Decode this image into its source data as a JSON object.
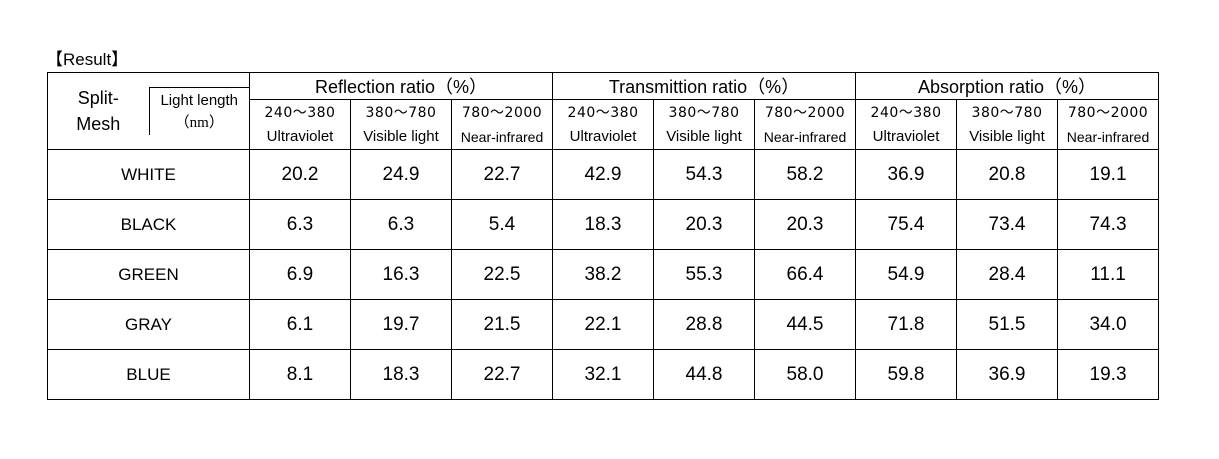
{
  "caption": "【Result】",
  "header": {
    "split_mesh": [
      "Split-",
      "Mesh"
    ],
    "light_length": [
      "Light length",
      "（nm）"
    ],
    "groups": [
      "Reflection ratio（%）",
      "Transmittion ratio（%）",
      "Absorption ratio（%）"
    ],
    "bands": [
      {
        "range": "240～380",
        "kind": "Ultraviolet"
      },
      {
        "range": "380～780",
        "kind": "Visible light"
      },
      {
        "range": "780～2000",
        "kind": "Near-infrared"
      }
    ]
  },
  "rows": [
    {
      "name": "WHITE",
      "values": [
        "20.2",
        "24.9",
        "22.7",
        "42.9",
        "54.3",
        "58.2",
        "36.9",
        "20.8",
        "19.1"
      ]
    },
    {
      "name": "BLACK",
      "values": [
        "6.3",
        "6.3",
        "5.4",
        "18.3",
        "20.3",
        "20.3",
        "75.4",
        "73.4",
        "74.3"
      ]
    },
    {
      "name": "GREEN",
      "values": [
        "6.9",
        "16.3",
        "22.5",
        "38.2",
        "55.3",
        "66.4",
        "54.9",
        "28.4",
        "11.1"
      ]
    },
    {
      "name": "GRAY",
      "values": [
        "6.1",
        "19.7",
        "21.5",
        "22.1",
        "28.8",
        "44.5",
        "71.8",
        "51.5",
        "34.0"
      ]
    },
    {
      "name": "BLUE",
      "values": [
        "8.1",
        "18.3",
        "22.7",
        "32.1",
        "44.8",
        "58.0",
        "59.8",
        "36.9",
        "19.3"
      ]
    }
  ]
}
